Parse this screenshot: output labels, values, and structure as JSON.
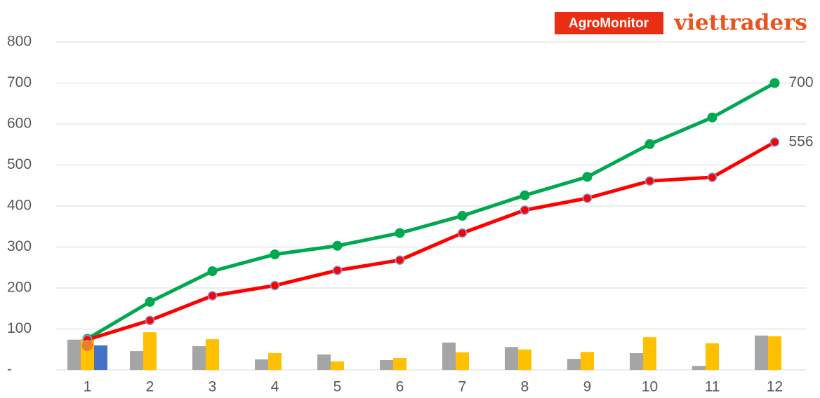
{
  "chart_data": {
    "type": "combo",
    "annotations": [
      "AgroMonitor",
      "viettraders"
    ],
    "categories": [
      "1",
      "2",
      "3",
      "4",
      "5",
      "6",
      "7",
      "8",
      "9",
      "10",
      "11",
      "12"
    ],
    "ylim": [
      0,
      800
    ],
    "yticks": [
      {
        "value": 0,
        "label": "-"
      },
      100,
      200,
      300,
      400,
      500,
      600,
      700,
      800
    ],
    "grid": true,
    "series": [
      {
        "kind": "line",
        "color": "#00a84f",
        "values": [
          76,
          166,
          241,
          282,
          303,
          334,
          376,
          426,
          471,
          551,
          616,
          700
        ]
      },
      {
        "kind": "line",
        "color": "#ff0000",
        "values": [
          74,
          121,
          181,
          206,
          243,
          268,
          334,
          390,
          419,
          461,
          470,
          556
        ]
      },
      {
        "kind": "bar",
        "color": "#a5a5a5",
        "values": [
          74,
          46,
          58,
          26,
          38,
          24,
          67,
          56,
          27,
          41,
          10,
          84
        ]
      },
      {
        "kind": "bar",
        "color": "#ffc000",
        "values": [
          75,
          92,
          75,
          41,
          21,
          29,
          43,
          50,
          44,
          80,
          65,
          82
        ]
      },
      {
        "kind": "bar",
        "color": "#4472c4",
        "values": [
          60,
          null,
          null,
          null,
          null,
          null,
          null,
          null,
          null,
          null,
          null,
          null
        ]
      },
      {
        "kind": "dot",
        "color": "#ed7d31",
        "values": [
          60,
          null,
          null,
          null,
          null,
          null,
          null,
          null,
          null,
          null,
          null,
          null
        ]
      }
    ],
    "end_labels": [
      0,
      1
    ]
  }
}
